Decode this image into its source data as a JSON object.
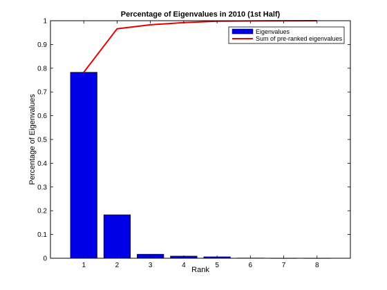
{
  "chart_data": {
    "type": "bar",
    "title": "Percentage of Eigenvalues in 2010 (1st Half)",
    "xlabel": "Rank",
    "ylabel": "Percentage of Eigenvalues",
    "categories": [
      "1",
      "2",
      "3",
      "4",
      "5",
      "6",
      "7",
      "8"
    ],
    "xlim": [
      0,
      9
    ],
    "ylim": [
      0,
      1
    ],
    "yticks": [
      "0",
      "0.1",
      "0.2",
      "0.3",
      "0.4",
      "0.5",
      "0.6",
      "0.7",
      "0.8",
      "0.9",
      "1"
    ],
    "series": [
      {
        "name": "Eigenvalues",
        "type": "bar",
        "color": "#0000e6",
        "values": [
          0.783,
          0.183,
          0.017,
          0.009,
          0.006,
          0.001,
          0.0005,
          0.0005
        ]
      },
      {
        "name": "Sum of pre-ranked eigenvalues",
        "type": "line",
        "color": "#e60000",
        "values": [
          0.783,
          0.966,
          0.983,
          0.992,
          0.998,
          0.999,
          0.9995,
          1.0
        ]
      }
    ],
    "legend": "top-right",
    "grid": false
  }
}
